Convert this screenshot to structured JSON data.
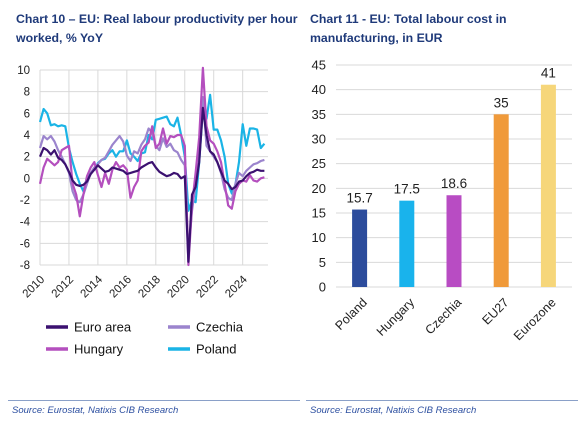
{
  "colors": {
    "title": "#1f3a7a",
    "source": "#2c4fa0",
    "grid": "#d9d9d9",
    "euro_area": "#3b1170",
    "czechia": "#9b84cd",
    "hungary": "#b44fbe",
    "poland": "#1ab4e6",
    "bar_poland": "#2c4c9c",
    "bar_hungary": "#19b3ec",
    "bar_czechia": "#b84cc3",
    "bar_eu27": "#f09a3a",
    "bar_eurozone": "#f6d67a"
  },
  "chart_data": [
    {
      "type": "line",
      "title": "Chart 10 – EU: Real labour productivity per hour worked, % YoY",
      "source": "Source: Eurostat, Natixis CIB Research",
      "xlim": [
        2010,
        2025.75
      ],
      "ylim": [
        -8,
        10
      ],
      "yticks": [
        -8,
        -6,
        -4,
        -2,
        0,
        2,
        4,
        6,
        8,
        10
      ],
      "xticks": [
        2010,
        2012,
        2014,
        2016,
        2018,
        2020,
        2022,
        2024
      ],
      "legend": "bottom",
      "grid": true,
      "series": [
        {
          "name": "Euro area",
          "color": "#3b1170",
          "points": [
            [
              2010,
              2.0
            ],
            [
              2010.25,
              2.8
            ],
            [
              2010.5,
              2.6
            ],
            [
              2010.75,
              2.2
            ],
            [
              2011,
              2.6
            ],
            [
              2011.25,
              1.9
            ],
            [
              2011.5,
              1.7
            ],
            [
              2011.75,
              1.3
            ],
            [
              2012,
              0.6
            ],
            [
              2012.25,
              -0.2
            ],
            [
              2012.5,
              -0.6
            ],
            [
              2012.75,
              -0.7
            ],
            [
              2013,
              -0.6
            ],
            [
              2013.25,
              -0.3
            ],
            [
              2013.5,
              0.4
            ],
            [
              2013.75,
              0.8
            ],
            [
              2014,
              1.2
            ],
            [
              2014.25,
              0.9
            ],
            [
              2014.5,
              0.6
            ],
            [
              2014.75,
              0.7
            ],
            [
              2015,
              1.0
            ],
            [
              2015.25,
              0.9
            ],
            [
              2015.5,
              0.8
            ],
            [
              2015.75,
              0.7
            ],
            [
              2016,
              0.4
            ],
            [
              2016.25,
              0.5
            ],
            [
              2016.5,
              0.6
            ],
            [
              2016.75,
              0.7
            ],
            [
              2017,
              1.0
            ],
            [
              2017.25,
              1.2
            ],
            [
              2017.5,
              1.4
            ],
            [
              2017.75,
              1.5
            ],
            [
              2018,
              1.0
            ],
            [
              2018.25,
              0.6
            ],
            [
              2018.5,
              0.4
            ],
            [
              2018.75,
              0.2
            ],
            [
              2019,
              0.3
            ],
            [
              2019.25,
              0.5
            ],
            [
              2019.5,
              0.4
            ],
            [
              2019.75,
              0.0
            ],
            [
              2020,
              0.2
            ],
            [
              2020.25,
              -7.7
            ],
            [
              2020.5,
              -1.5
            ],
            [
              2020.75,
              -0.8
            ],
            [
              2021,
              1.5
            ],
            [
              2021.25,
              6.5
            ],
            [
              2021.5,
              4.0
            ],
            [
              2021.75,
              2.5
            ],
            [
              2022,
              2.2
            ],
            [
              2022.25,
              1.5
            ],
            [
              2022.5,
              0.6
            ],
            [
              2022.75,
              -0.2
            ],
            [
              2023,
              -0.5
            ],
            [
              2023.25,
              -1.0
            ],
            [
              2023.5,
              -0.8
            ],
            [
              2023.75,
              -0.3
            ],
            [
              2024,
              -0.2
            ],
            [
              2024.25,
              0.2
            ],
            [
              2024.5,
              0.5
            ],
            [
              2024.75,
              0.6
            ],
            [
              2025,
              0.8
            ],
            [
              2025.25,
              0.7
            ],
            [
              2025.5,
              0.7
            ]
          ]
        },
        {
          "name": "Czechia",
          "color": "#9b84cd",
          "points": [
            [
              2010,
              2.8
            ],
            [
              2010.25,
              3.9
            ],
            [
              2010.5,
              3.6
            ],
            [
              2010.75,
              3.9
            ],
            [
              2011,
              3.4
            ],
            [
              2011.25,
              2.6
            ],
            [
              2011.5,
              2.0
            ],
            [
              2011.75,
              1.3
            ],
            [
              2012,
              0.5
            ],
            [
              2012.25,
              -1.2
            ],
            [
              2012.5,
              -2.0
            ],
            [
              2012.75,
              -2.2
            ],
            [
              2013,
              -1.5
            ],
            [
              2013.25,
              -0.5
            ],
            [
              2013.5,
              0.5
            ],
            [
              2013.75,
              1.0
            ],
            [
              2014,
              1.3
            ],
            [
              2014.25,
              1.7
            ],
            [
              2014.5,
              1.9
            ],
            [
              2014.75,
              2.5
            ],
            [
              2015,
              3.1
            ],
            [
              2015.25,
              3.5
            ],
            [
              2015.5,
              3.9
            ],
            [
              2015.75,
              3.4
            ],
            [
              2016,
              2.1
            ],
            [
              2016.25,
              1.6
            ],
            [
              2016.5,
              2.5
            ],
            [
              2016.75,
              2.3
            ],
            [
              2017,
              3.1
            ],
            [
              2017.25,
              3.6
            ],
            [
              2017.5,
              4.6
            ],
            [
              2017.75,
              4.2
            ],
            [
              2018,
              3.0
            ],
            [
              2018.25,
              2.6
            ],
            [
              2018.5,
              3.7
            ],
            [
              2018.75,
              2.9
            ],
            [
              2019,
              3.2
            ],
            [
              2019.25,
              2.6
            ],
            [
              2019.5,
              2.4
            ],
            [
              2019.75,
              1.7
            ],
            [
              2020,
              1.2
            ],
            [
              2020.25,
              -6.8
            ],
            [
              2020.5,
              -3.0
            ],
            [
              2020.75,
              -0.5
            ],
            [
              2021,
              2.0
            ],
            [
              2021.25,
              7.5
            ],
            [
              2021.5,
              3.0
            ],
            [
              2021.75,
              2.5
            ],
            [
              2022,
              2.0
            ],
            [
              2022.25,
              1.5
            ],
            [
              2022.5,
              0.5
            ],
            [
              2022.75,
              -1.0
            ],
            [
              2023,
              -1.8
            ],
            [
              2023.25,
              -2.0
            ],
            [
              2023.5,
              -0.5
            ],
            [
              2023.75,
              0.5
            ],
            [
              2024,
              0.2
            ],
            [
              2024.25,
              0.7
            ],
            [
              2024.5,
              1.0
            ],
            [
              2024.75,
              1.3
            ],
            [
              2025,
              1.4
            ],
            [
              2025.25,
              1.6
            ],
            [
              2025.5,
              1.7
            ]
          ]
        },
        {
          "name": "Hungary",
          "color": "#b44fbe",
          "points": [
            [
              2010,
              -0.5
            ],
            [
              2010.25,
              1.0
            ],
            [
              2010.5,
              1.8
            ],
            [
              2010.75,
              1.5
            ],
            [
              2011,
              1.2
            ],
            [
              2011.25,
              1.5
            ],
            [
              2011.5,
              2.6
            ],
            [
              2011.75,
              2.8
            ],
            [
              2012,
              3.0
            ],
            [
              2012.25,
              -0.5
            ],
            [
              2012.5,
              -1.5
            ],
            [
              2012.75,
              -3.5
            ],
            [
              2013,
              -1.5
            ],
            [
              2013.25,
              0.2
            ],
            [
              2013.5,
              1.0
            ],
            [
              2013.75,
              1.5
            ],
            [
              2014,
              0.3
            ],
            [
              2014.25,
              -0.8
            ],
            [
              2014.5,
              0.5
            ],
            [
              2014.75,
              -0.5
            ],
            [
              2015,
              0.8
            ],
            [
              2015.25,
              1.5
            ],
            [
              2015.5,
              1.0
            ],
            [
              2015.75,
              1.2
            ],
            [
              2016,
              0.8
            ],
            [
              2016.25,
              -1.8
            ],
            [
              2016.5,
              -0.8
            ],
            [
              2016.75,
              -0.2
            ],
            [
              2017,
              2.5
            ],
            [
              2017.25,
              3.0
            ],
            [
              2017.5,
              3.3
            ],
            [
              2017.75,
              4.8
            ],
            [
              2018,
              2.8
            ],
            [
              2018.25,
              3.2
            ],
            [
              2018.5,
              4.6
            ],
            [
              2018.75,
              3.2
            ],
            [
              2019,
              3.9
            ],
            [
              2019.25,
              3.8
            ],
            [
              2019.5,
              4.0
            ],
            [
              2019.75,
              4.0
            ],
            [
              2020,
              3.0
            ],
            [
              2020.25,
              -8.0
            ],
            [
              2020.5,
              -2.5
            ],
            [
              2020.75,
              0.5
            ],
            [
              2021,
              3.8
            ],
            [
              2021.25,
              10.2
            ],
            [
              2021.5,
              4.8
            ],
            [
              2021.75,
              3.5
            ],
            [
              2022,
              3.2
            ],
            [
              2022.25,
              2.5
            ],
            [
              2022.5,
              1.5
            ],
            [
              2022.75,
              -0.5
            ],
            [
              2023,
              -2.5
            ],
            [
              2023.25,
              -2.8
            ],
            [
              2023.5,
              -1.2
            ],
            [
              2023.75,
              -0.5
            ],
            [
              2024,
              -0.2
            ],
            [
              2024.25,
              -0.3
            ],
            [
              2024.5,
              0.3
            ],
            [
              2024.75,
              -0.2
            ],
            [
              2025,
              -0.3
            ],
            [
              2025.25,
              0.0
            ],
            [
              2025.5,
              0.1
            ]
          ]
        },
        {
          "name": "Poland",
          "color": "#1ab4e6",
          "points": [
            [
              2010,
              5.2
            ],
            [
              2010.25,
              6.4
            ],
            [
              2010.5,
              6.0
            ],
            [
              2010.75,
              4.9
            ],
            [
              2011,
              5.0
            ],
            [
              2011.25,
              4.8
            ],
            [
              2011.5,
              4.9
            ],
            [
              2011.75,
              4.8
            ],
            [
              2012,
              2.8
            ],
            [
              2012.25,
              1.5
            ],
            [
              2012.5,
              0.4
            ],
            [
              2012.75,
              -0.5
            ],
            [
              2013,
              -1.2
            ],
            [
              2013.25,
              0.1
            ],
            [
              2013.5,
              0.5
            ],
            [
              2013.75,
              0.8
            ],
            [
              2014,
              1.4
            ],
            [
              2014.25,
              1.7
            ],
            [
              2014.5,
              1.8
            ],
            [
              2014.75,
              2.3
            ],
            [
              2015,
              2.6
            ],
            [
              2015.25,
              2.0
            ],
            [
              2015.5,
              2.5
            ],
            [
              2015.75,
              2.5
            ],
            [
              2016,
              3.5
            ],
            [
              2016.25,
              2.3
            ],
            [
              2016.5,
              2.0
            ],
            [
              2016.75,
              1.6
            ],
            [
              2017,
              2.3
            ],
            [
              2017.25,
              2.4
            ],
            [
              2017.5,
              4.0
            ],
            [
              2017.75,
              3.6
            ],
            [
              2018,
              5.4
            ],
            [
              2018.25,
              5.5
            ],
            [
              2018.5,
              5.6
            ],
            [
              2018.75,
              5.7
            ],
            [
              2019,
              5.0
            ],
            [
              2019.25,
              4.8
            ],
            [
              2019.5,
              5.6
            ],
            [
              2019.75,
              4.0
            ],
            [
              2020,
              2.0
            ],
            [
              2020.25,
              -3.0
            ],
            [
              2020.5,
              -2.0
            ],
            [
              2020.75,
              -2.2
            ],
            [
              2021,
              1.5
            ],
            [
              2021.25,
              6.5
            ],
            [
              2021.5,
              5.5
            ],
            [
              2021.75,
              7.7
            ],
            [
              2022,
              4.5
            ],
            [
              2022.25,
              4.5
            ],
            [
              2022.5,
              3.5
            ],
            [
              2022.75,
              2.0
            ],
            [
              2023,
              -0.5
            ],
            [
              2023.25,
              -1.4
            ],
            [
              2023.5,
              -0.6
            ],
            [
              2023.75,
              1.5
            ],
            [
              2024,
              5.0
            ],
            [
              2024.25,
              3.0
            ],
            [
              2024.5,
              4.6
            ],
            [
              2024.75,
              4.6
            ],
            [
              2025,
              4.5
            ],
            [
              2025.25,
              2.8
            ],
            [
              2025.5,
              3.2
            ]
          ]
        }
      ]
    },
    {
      "type": "bar",
      "title": "Chart 11 - EU: Total labour cost in manufacturing, in EUR",
      "source": "Source: Eurostat, Natixis CIB Research",
      "categories": [
        "Poland",
        "Hungary",
        "Czechia",
        "EU27",
        "Eurozone"
      ],
      "values": [
        15.7,
        17.5,
        18.6,
        35,
        41
      ],
      "value_labels": [
        "15.7",
        "17.5",
        "18.6",
        "35",
        "41"
      ],
      "ylim": [
        0,
        45
      ],
      "yticks": [
        0,
        5,
        10,
        15,
        20,
        25,
        30,
        35,
        40,
        45
      ],
      "grid": true
    }
  ]
}
